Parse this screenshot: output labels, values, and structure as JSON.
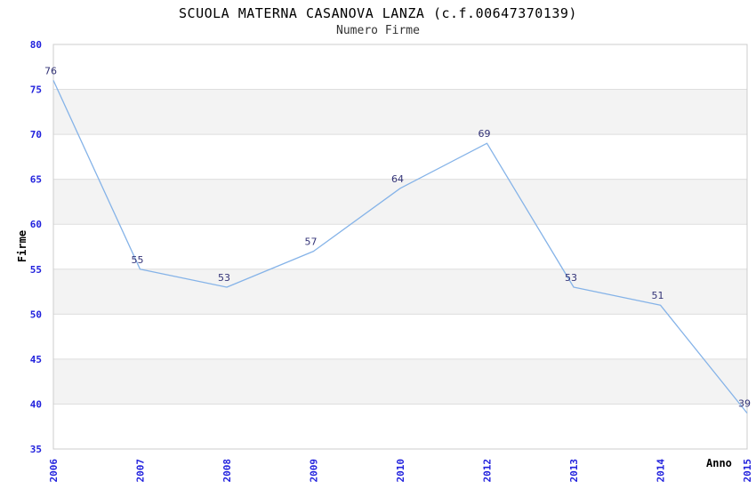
{
  "title": "SCUOLA MATERNA CASANOVA LANZA (c.f.00647370139)",
  "subtitle": "Numero Firme",
  "chart_data": {
    "type": "line",
    "title": "SCUOLA MATERNA CASANOVA LANZA (c.f.00647370139)",
    "subtitle": "Numero Firme",
    "categories": [
      "2006",
      "2007",
      "2008",
      "2009",
      "2010",
      "2012",
      "2013",
      "2014",
      "2015"
    ],
    "series": [
      {
        "name": "Numero Firme",
        "values": [
          76,
          55,
          53,
          57,
          64,
          69,
          53,
          51,
          39
        ]
      }
    ],
    "xlabel": "Anno",
    "ylabel": "Firme",
    "ylim": [
      35,
      80
    ],
    "ytick_step": 5,
    "yticks": [
      35,
      40,
      45,
      50,
      55,
      60,
      65,
      70,
      75,
      80
    ],
    "grid": true,
    "legend": "none",
    "colors": {
      "line": "#85b3e8",
      "point_label": "#333377",
      "tick_label": "#2222dd",
      "band_fill": "#f3f3f3",
      "grid_line": "#dedede",
      "border": "#cccccc",
      "title": "#000000",
      "subtitle": "#333333"
    }
  }
}
